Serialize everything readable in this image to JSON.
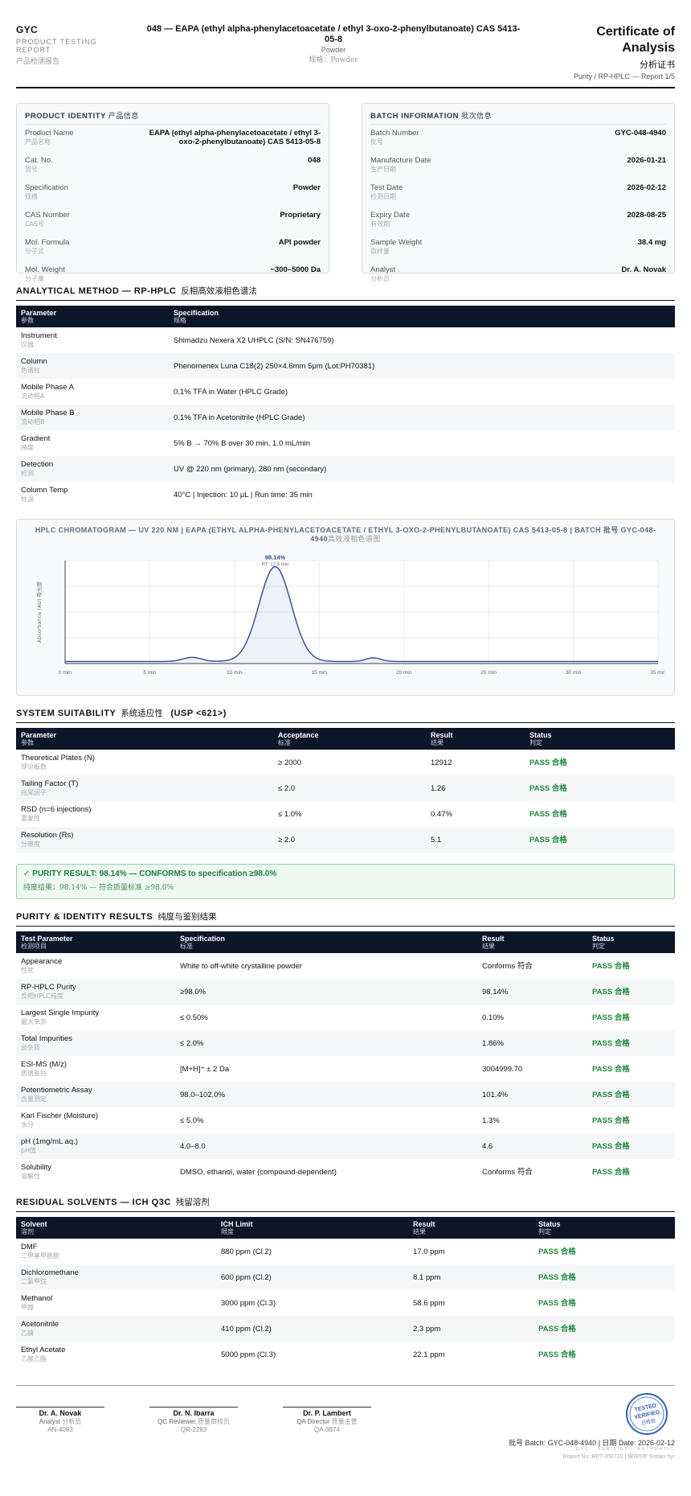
{
  "header": {
    "brand": "GYC",
    "brand_sub": "PRODUCT TESTING REPORT",
    "brand_cn": "产品检测报告",
    "title": "048 — EAPA (ethyl alpha-phenylacetoacetate / ethyl 3-oxo-2-phenylbutanoate) CAS 5413-05-8",
    "spec": "Powder",
    "spec_cn": "规格：Powder",
    "cert_title": "Certificate of Analysis",
    "cert_cn": "分析证书",
    "cert_sub": "Purity / RP-HPLC — Report 1/5"
  },
  "identity": {
    "title": "PRODUCT IDENTITY",
    "title_cn": "产品信息",
    "rows": [
      {
        "label": "Product Name",
        "cn": "产品名称",
        "value": "EAPA (ethyl alpha-phenylacetoacetate / ethyl 3-oxo-2-phenylbutanoate) CAS 5413-05-8"
      },
      {
        "label": "Cat. No.",
        "cn": "货号",
        "value": "048"
      },
      {
        "label": "Specification",
        "cn": "规格",
        "value": "Powder"
      },
      {
        "label": "CAS Number",
        "cn": "CAS号",
        "value": "Proprietary"
      },
      {
        "label": "Mol. Formula",
        "cn": "分子式",
        "value": "API powder"
      },
      {
        "label": "Mol. Weight",
        "cn": "分子量",
        "value": "~300–5000 Da"
      }
    ]
  },
  "batch": {
    "title": "BATCH INFORMATION",
    "title_cn": "批次信息",
    "rows": [
      {
        "label": "Batch Number",
        "cn": "批号",
        "value": "GYC-048-4940"
      },
      {
        "label": "Manufacture Date",
        "cn": "生产日期",
        "value": "2026-01-21"
      },
      {
        "label": "Test Date",
        "cn": "检测日期",
        "value": "2026-02-12"
      },
      {
        "label": "Expiry Date",
        "cn": "有效期",
        "value": "2028-08-25"
      },
      {
        "label": "Sample Weight",
        "cn": "取样量",
        "value": "38.4 mg"
      },
      {
        "label": "Analyst",
        "cn": "分析员",
        "value": "Dr. A. Novak"
      }
    ]
  },
  "method": {
    "title": "ANALYTICAL METHOD — RP-HPLC",
    "title_cn": "反相高效液相色谱法",
    "headers": [
      {
        "en": "Parameter",
        "cn": "参数"
      },
      {
        "en": "Specification",
        "cn": "规格"
      }
    ],
    "rows": [
      {
        "param": "Instrument",
        "cn": "仪器",
        "value": "Shimadzu Nexera X2 UHPLC (S/N: SN476759)"
      },
      {
        "param": "Column",
        "cn": "色谱柱",
        "value": "Phenomenex Luna C18(2) 250×4.6mm 5μm (Lot:PH70381)"
      },
      {
        "param": "Mobile Phase A",
        "cn": "流动相A",
        "value": "0.1% TFA in Water (HPLC Grade)"
      },
      {
        "param": "Mobile Phase B",
        "cn": "流动相B",
        "value": "0.1% TFA in Acetonitrile (HPLC Grade)"
      },
      {
        "param": "Gradient",
        "cn": "梯度",
        "value": "5% B → 70% B over 30 min, 1.0 mL/min"
      },
      {
        "param": "Detection",
        "cn": "检测",
        "value": "UV @ 220 nm (primary), 280 nm (secondary)"
      },
      {
        "param": "Column Temp",
        "cn": "柱温",
        "value": "40°C | Injection: 10 μL | Run time: 35 min"
      }
    ]
  },
  "chart_data": {
    "type": "line",
    "title": "HPLC CHROMATOGRAM — UV 220 NM | EAPA (ETHYL ALPHA-PHENYLACETOACETATE / ETHYL 3-OXO-2-PHENYLBUTANOATE) CAS 5413-05-8 | BATCH 批号 GYC-048-4940",
    "title_cn": "高效液相色谱图",
    "ylabel": "Absorbance (AU) 吸光度",
    "xlabel": "",
    "x_ticks": [
      "0 min",
      "5 min",
      "10 min",
      "15 min",
      "20 min",
      "25 min",
      "30 min",
      "35 min"
    ],
    "xlim": [
      0,
      35
    ],
    "ylim": [
      0,
      1
    ],
    "grid": true,
    "peaks": [
      {
        "rt": 7.5,
        "height": 0.04,
        "width": 0.55
      },
      {
        "rt": 12.4,
        "height": 0.92,
        "width": 0.95
      },
      {
        "rt": 18.2,
        "height": 0.035,
        "width": 0.45
      }
    ],
    "main_peak_label": "98.14%",
    "main_peak_rt": "RT: 12.4 min"
  },
  "suitability": {
    "title": "SYSTEM SUITABILITY",
    "title_cn": "系统适应性",
    "title_suffix": "(USP <621>)",
    "headers": [
      {
        "en": "Parameter",
        "cn": "参数"
      },
      {
        "en": "Acceptance",
        "cn": "标准"
      },
      {
        "en": "Result",
        "cn": "结果"
      },
      {
        "en": "Status",
        "cn": "判定"
      }
    ],
    "rows": [
      {
        "param": "Theoretical Plates (N)",
        "cn": "理论板数",
        "acc": "≥ 2000",
        "result": "12912",
        "status": "PASS 合格"
      },
      {
        "param": "Tailing Factor (T)",
        "cn": "拖尾因子",
        "acc": "≤ 2.0",
        "result": "1.26",
        "status": "PASS 合格"
      },
      {
        "param": "RSD (n=6 injections)",
        "cn": "重复性",
        "acc": "≤ 1.0%",
        "result": "0.47%",
        "status": "PASS 合格"
      },
      {
        "param": "Resolution (Rs)",
        "cn": "分离度",
        "acc": "≥ 2.0",
        "result": "5.1",
        "status": "PASS 合格"
      }
    ]
  },
  "purity_banner": {
    "main": "✓ PURITY RESULT: 98.14% — CONFORMS to specification ≥98.0%",
    "cn": "纯度结果：98.14% — 符合质量标准 ≥98.0%"
  },
  "results": {
    "title": "PURITY & IDENTITY RESULTS",
    "title_cn": "纯度与鉴别结果",
    "headers": [
      {
        "en": "Test Parameter",
        "cn": "检测项目"
      },
      {
        "en": "Specification",
        "cn": "标准"
      },
      {
        "en": "Result",
        "cn": "结果"
      },
      {
        "en": "Status",
        "cn": "判定"
      }
    ],
    "rows": [
      {
        "param": "Appearance",
        "cn": "性状",
        "spec": "White to off-white crystalline powder",
        "result": "Conforms 符合",
        "status": "PASS 合格"
      },
      {
        "param": "RP-HPLC Purity",
        "cn": "反相HPLC纯度",
        "spec": "≥98.0%",
        "result": "98.14%",
        "status": "PASS 合格"
      },
      {
        "param": "Largest Single Impurity",
        "cn": "最大单杂",
        "spec": "≤ 0.50%",
        "result": "0.10%",
        "status": "PASS 合格"
      },
      {
        "param": "Total Impurities",
        "cn": "总杂质",
        "spec": "≤ 2.0%",
        "result": "1.86%",
        "status": "PASS 合格"
      },
      {
        "param": "ESI-MS (M/z)",
        "cn": "质谱鉴别",
        "spec": "[M+H]⁺ ± 2 Da",
        "result": "3004999.70",
        "status": "PASS 合格"
      },
      {
        "param": "Potentiometric Assay",
        "cn": "含量测定",
        "spec": "98.0–102.0%",
        "result": "101.4%",
        "status": "PASS 合格"
      },
      {
        "param": "Karl Fischer (Moisture)",
        "cn": "水分",
        "spec": "≤ 5.0%",
        "result": "1.3%",
        "status": "PASS 合格"
      },
      {
        "param": "pH (1mg/mL aq.)",
        "cn": "pH值",
        "spec": "4.0–8.0",
        "result": "4.6",
        "status": "PASS 合格"
      },
      {
        "param": "Solubility",
        "cn": "溶解性",
        "spec": "DMSO, ethanol, water (compound-dependent)",
        "result": "Conforms 符合",
        "status": "PASS 合格"
      }
    ]
  },
  "solvents": {
    "title": "RESIDUAL SOLVENTS — ICH Q3C",
    "title_cn": "残留溶剂",
    "headers": [
      {
        "en": "Solvent",
        "cn": "溶剂"
      },
      {
        "en": "ICH Limit",
        "cn": "限度"
      },
      {
        "en": "Result",
        "cn": "结果"
      },
      {
        "en": "Status",
        "cn": "判定"
      }
    ],
    "rows": [
      {
        "name": "DMF",
        "cn": "二甲基甲酰胺",
        "limit": "880 ppm (Cl.2)",
        "result": "17.0 ppm",
        "status": "PASS 合格"
      },
      {
        "name": "Dichloromethane",
        "cn": "二氯甲烷",
        "limit": "600 ppm (Cl.2)",
        "result": "8.1 ppm",
        "status": "PASS 合格"
      },
      {
        "name": "Methanol",
        "cn": "甲醇",
        "limit": "3000 ppm (Cl.3)",
        "result": "58.6 ppm",
        "status": "PASS 合格"
      },
      {
        "name": "Acetonitrile",
        "cn": "乙腈",
        "limit": "410 ppm (Cl.2)",
        "result": "2.3 ppm",
        "status": "PASS 合格"
      },
      {
        "name": "Ethyl Acetate",
        "cn": "乙酸乙酯",
        "limit": "5000 ppm (Cl.3)",
        "result": "22.1 ppm",
        "status": "PASS 合格"
      }
    ]
  },
  "signatures": [
    {
      "name": "Dr. A. Novak",
      "role": "Analyst",
      "role_cn": "分析员",
      "id": "AN-4093"
    },
    {
      "name": "Dr. N. Ibarra",
      "role": "QC Reviewer",
      "role_cn": "质量审核员",
      "id": "QR-2283"
    },
    {
      "name": "Dr. P. Lambert",
      "role": "QA Director",
      "role_cn": "质量主管",
      "id": "QA-3874"
    }
  ],
  "stamp": {
    "line1": "TESTED",
    "line2": "VERIFIED",
    "line3": "已检验",
    "color": "#2f5fb8"
  },
  "footer": {
    "batch_line": "批号 Batch: GYC-048-4940 | 日期 Date: 2026-02-12",
    "tiny_line": "GYC · VERIFIED · AUTHENTIC",
    "report_no": "Report No: RPT-050720 | 保存5年 Retain 5yr"
  },
  "colors": {
    "accent_dark": "#0b1628",
    "pass": "#1e8b3a",
    "chart_line": "#2b4a9b"
  }
}
